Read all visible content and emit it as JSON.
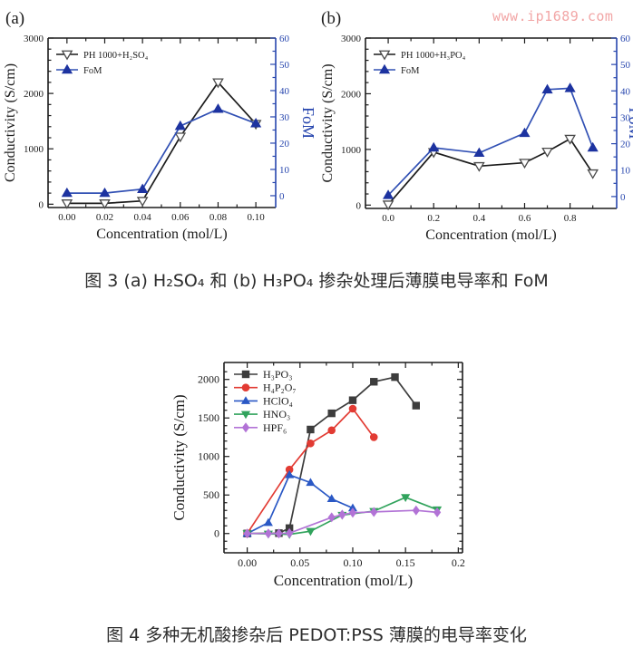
{
  "watermark": {
    "text": "www.ip1689.com",
    "color": "#f2a6a6"
  },
  "captions": {
    "fig3": "图 3 (a) H₂SO₄ 和 (b) H₃PO₄ 掺杂处理后薄膜电导率和 FoM",
    "fig4": "图 4 多种无机酸掺杂后 PEDOT:PSS 薄膜的电导率变化"
  },
  "chart_data": [
    {
      "id": "a",
      "type": "line",
      "corner_label": "(a)",
      "x_axis": {
        "label": "Concentration (mol/L)",
        "range": [
          -0.01,
          0.1105
        ],
        "ticks": [
          0.0,
          0.02,
          0.04,
          0.06,
          0.08,
          0.1
        ],
        "tick_labels": [
          "0.00",
          "0.02",
          "0.04",
          "0.06",
          "0.08",
          "0.10"
        ],
        "minor_step": 0.01
      },
      "y_left": {
        "label": "Conductivity (S/cm)",
        "range": [
          -60,
          3000
        ],
        "ticks": [
          0,
          1000,
          2000,
          3000
        ],
        "tick_labels": [
          "0",
          "1000",
          "2000",
          "3000"
        ],
        "minor_step": 200,
        "color": "#1c1c1c"
      },
      "y_right": {
        "label": "FoM",
        "range": [
          -4.5,
          60
        ],
        "ticks": [
          0,
          10,
          20,
          30,
          40,
          50,
          60
        ],
        "tick_labels": [
          "0",
          "10",
          "20",
          "30",
          "40",
          "50",
          "60"
        ],
        "minor_step": 5,
        "color": "#2746ae"
      },
      "legend_position": "top-left",
      "grid": false,
      "series": [
        {
          "name": "PH 1000+H₂SO₄",
          "axis": "left",
          "line_color": "#1c1c1c",
          "marker": "triangle-down-open",
          "marker_color": "#4a4a4a",
          "x": [
            0.0,
            0.02,
            0.04,
            0.06,
            0.08,
            0.1
          ],
          "y": [
            15,
            15,
            60,
            1220,
            2200,
            1450
          ]
        },
        {
          "name": "FoM",
          "axis": "right",
          "line_color": "#3150b4",
          "marker": "triangle-up",
          "marker_color": "#1d33a0",
          "x": [
            0.0,
            0.02,
            0.04,
            0.06,
            0.08,
            0.1
          ],
          "y": [
            1,
            1,
            2.5,
            26.5,
            33,
            27.5
          ]
        }
      ]
    },
    {
      "id": "b",
      "type": "line",
      "corner_label": "(b)",
      "x_axis": {
        "label": "Concentration (mol/L)",
        "range": [
          -0.1,
          1.005
        ],
        "ticks": [
          0.0,
          0.2,
          0.4,
          0.6,
          0.8
        ],
        "tick_labels": [
          "0.0",
          "0.2",
          "0.4",
          "0.6",
          "0.8"
        ],
        "minor_step": 0.1
      },
      "y_left": {
        "label": "Conductivity (S/cm)",
        "range": [
          -60,
          3000
        ],
        "ticks": [
          0,
          1000,
          2000,
          3000
        ],
        "tick_labels": [
          "0",
          "1000",
          "2000",
          "3000"
        ],
        "minor_step": 200,
        "color": "#1c1c1c"
      },
      "y_right": {
        "label": "FoM",
        "range": [
          -4.5,
          60
        ],
        "ticks": [
          0,
          10,
          20,
          30,
          40,
          50,
          60
        ],
        "tick_labels": [
          "0",
          "10",
          "20",
          "30",
          "40",
          "50",
          "60"
        ],
        "minor_step": 5,
        "color": "#2746ae"
      },
      "legend_position": "top-left",
      "grid": false,
      "series": [
        {
          "name": "PH 1000+H₃PO₄",
          "axis": "left",
          "line_color": "#1c1c1c",
          "marker": "triangle-down-open",
          "marker_color": "#4a4a4a",
          "x": [
            0.0,
            0.2,
            0.4,
            0.6,
            0.7,
            0.8,
            0.9
          ],
          "y": [
            10,
            950,
            700,
            760,
            960,
            1190,
            570
          ]
        },
        {
          "name": "FoM",
          "axis": "right",
          "line_color": "#3150b4",
          "marker": "triangle-up",
          "marker_color": "#1d33a0",
          "x": [
            0.0,
            0.2,
            0.4,
            0.6,
            0.7,
            0.8,
            0.9
          ],
          "y": [
            0.5,
            18.5,
            16.5,
            24,
            40.5,
            41,
            18.5
          ]
        }
      ]
    },
    {
      "id": "c",
      "type": "line",
      "corner_label": "",
      "x_axis": {
        "label": "Concentration (mol/L)",
        "range": [
          -0.022,
          0.204
        ],
        "ticks": [
          0.0,
          0.05,
          0.1,
          0.15,
          0.2
        ],
        "tick_labels": [
          "0.00",
          "0.05",
          "0.10",
          "0.15",
          "0.2"
        ],
        "minor_step": 0.025
      },
      "y_left": {
        "label": "Conductivity (S/cm)",
        "range": [
          -250,
          2220
        ],
        "ticks": [
          0,
          500,
          1000,
          1500,
          2000
        ],
        "tick_labels": [
          "0",
          "500",
          "1000",
          "1500",
          "2000"
        ],
        "minor_step": 100,
        "color": "#1c1c1c"
      },
      "y_right": null,
      "legend_position": "top-left",
      "grid": false,
      "series": [
        {
          "name": "H₃PO₃",
          "axis": "left",
          "line_color": "#3d3d3d",
          "marker": "square",
          "marker_color": "#3d3d3d",
          "x": [
            0.0,
            0.03,
            0.04,
            0.06,
            0.08,
            0.1,
            0.12,
            0.14,
            0.16
          ],
          "y": [
            0,
            5,
            70,
            1350,
            1560,
            1730,
            1970,
            2030,
            1660
          ]
        },
        {
          "name": "H₄P₂O₇",
          "axis": "left",
          "line_color": "#e23b33",
          "marker": "circle",
          "marker_color": "#e23b33",
          "x": [
            0.0,
            0.04,
            0.06,
            0.08,
            0.1,
            0.12
          ],
          "y": [
            0,
            830,
            1170,
            1340,
            1620,
            1250
          ]
        },
        {
          "name": "HClO₄",
          "axis": "left",
          "line_color": "#2a58c5",
          "marker": "triangle-up",
          "marker_color": "#2a58c5",
          "x": [
            0.0,
            0.02,
            0.04,
            0.06,
            0.08,
            0.1
          ],
          "y": [
            0,
            140,
            760,
            660,
            450,
            330
          ]
        },
        {
          "name": "HNO₃",
          "axis": "left",
          "line_color": "#31a35c",
          "marker": "triangle-down",
          "marker_color": "#31a35c",
          "x": [
            0.0,
            0.02,
            0.04,
            0.06,
            0.09,
            0.12,
            0.15,
            0.18
          ],
          "y": [
            0,
            -5,
            -10,
            30,
            240,
            290,
            470,
            310
          ]
        },
        {
          "name": "HPF₆",
          "axis": "left",
          "line_color": "#b273d6",
          "marker": "diamond",
          "marker_color": "#b273d6",
          "x": [
            0.0,
            0.02,
            0.03,
            0.04,
            0.08,
            0.09,
            0.1,
            0.12,
            0.16,
            0.18
          ],
          "y": [
            0,
            0,
            0,
            5,
            210,
            245,
            270,
            280,
            300,
            275
          ]
        }
      ]
    }
  ]
}
